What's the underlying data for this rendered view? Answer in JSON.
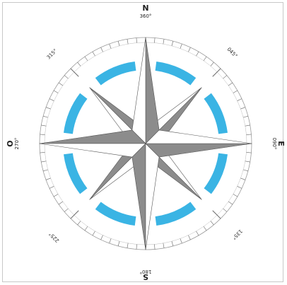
{
  "colors": {
    "ring_segments": "#3ab4e4",
    "rose_dark": "#8c8c8c",
    "rose_light": "#ffffff",
    "outline": "#555555",
    "ticks": "#666666"
  },
  "cardinals": {
    "north": "N",
    "east": "E",
    "south": "S",
    "west": "O"
  },
  "degrees": {
    "north": "360°",
    "east": "090°",
    "south": "180°",
    "west": "270°",
    "northeast": "045°",
    "southeast": "135°",
    "southwest": "225°",
    "northwest": "315°"
  }
}
